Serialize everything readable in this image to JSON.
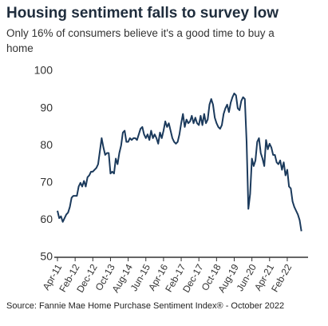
{
  "chart_data": {
    "type": "line",
    "title": "Housing sentiment falls to survey low",
    "subtitle": "Only 16% of consumers believe it's a good time to buy a home",
    "source": "Source: Fannie Mae Home Purchase Sentiment Index® - October 2022",
    "categories": [
      "Apr-11",
      null,
      null,
      null,
      null,
      null,
      null,
      null,
      null,
      null,
      "Feb-12",
      null,
      null,
      null,
      null,
      null,
      null,
      null,
      null,
      null,
      "Dec-12",
      null,
      null,
      null,
      null,
      null,
      null,
      null,
      null,
      null,
      "Oct-13",
      null,
      null,
      null,
      null,
      null,
      null,
      null,
      null,
      null,
      "Aug-14",
      null,
      null,
      null,
      null,
      null,
      null,
      null,
      null,
      null,
      "Jun-15",
      null,
      null,
      null,
      null,
      null,
      null,
      null,
      null,
      null,
      "Apr-16",
      null,
      null,
      null,
      null,
      null,
      null,
      null,
      null,
      null,
      "Feb-17",
      null,
      null,
      null,
      null,
      null,
      null,
      null,
      null,
      null,
      "Dec-17",
      null,
      null,
      null,
      null,
      null,
      null,
      null,
      null,
      null,
      "Oct-18",
      null,
      null,
      null,
      null,
      null,
      null,
      null,
      null,
      null,
      "Aug-19",
      null,
      null,
      null,
      null,
      null,
      null,
      null,
      null,
      null,
      "Jun-20",
      null,
      null,
      null,
      null,
      null,
      null,
      null,
      null,
      null,
      "Apr-21",
      null,
      null,
      null,
      null,
      null,
      null,
      null,
      null,
      null,
      "Feb-22",
      null,
      null,
      null,
      null,
      null,
      null,
      null,
      null
    ],
    "values": [
      62.5,
      60.5,
      61,
      59.5,
      60.5,
      61.5,
      62,
      63.5,
      66,
      66.5,
      66.5,
      66.5,
      69,
      70,
      69,
      70.5,
      69,
      71.5,
      72,
      73,
      73,
      73.5,
      74,
      75,
      78.5,
      82,
      79.5,
      77.5,
      78,
      78,
      72.5,
      73,
      72.5,
      76.5,
      75,
      78,
      80,
      83.5,
      84,
      81,
      81,
      82,
      81.5,
      82,
      82,
      81.5,
      83,
      84.5,
      85,
      83,
      82,
      83,
      81.5,
      84,
      82,
      83,
      82,
      80.5,
      83.5,
      82,
      84,
      86.5,
      85,
      86,
      84,
      82,
      81,
      80.5,
      81,
      83,
      86,
      88.5,
      85,
      87,
      86,
      86.5,
      88,
      86,
      87.5,
      86,
      85.5,
      88,
      85.5,
      88.5,
      86,
      87,
      91,
      92.5,
      91,
      87.5,
      86,
      85,
      84.5,
      85.5,
      88.5,
      90,
      91,
      89,
      91.5,
      93,
      94,
      93.5,
      90,
      89.5,
      92,
      93,
      92.5,
      81,
      63,
      67,
      76.5,
      74.5,
      76,
      81,
      82,
      78,
      76.5,
      74.5,
      81.5,
      79,
      80.5,
      79.5,
      77.5,
      77.5,
      75.5,
      75,
      76,
      73.5,
      75.5,
      72,
      73.5,
      69,
      68.5,
      65,
      63.5,
      62.5,
      61.5,
      60,
      57
    ],
    "color": "#1b3a5c",
    "ylim": [
      50,
      100
    ],
    "yticks": [
      50,
      60,
      70,
      80,
      90,
      100
    ],
    "grid": false
  }
}
